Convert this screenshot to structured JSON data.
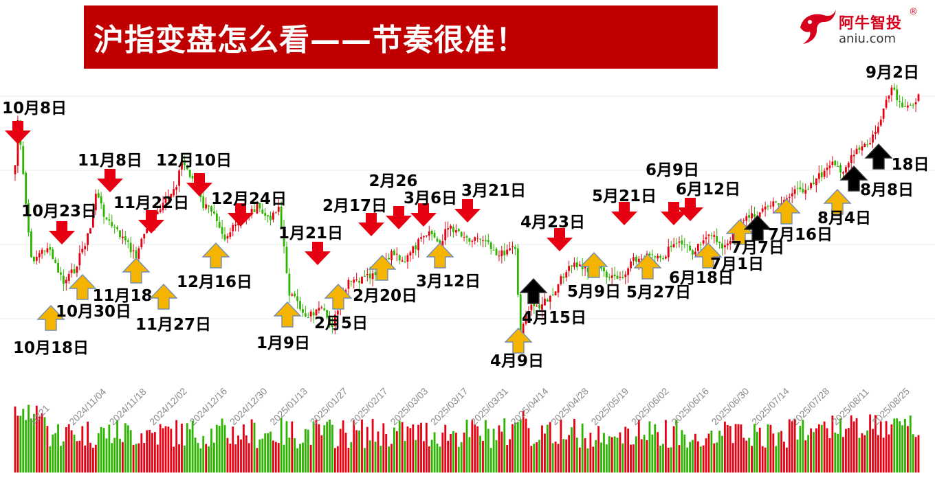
{
  "title": "沪指变盘怎么看——节奏很准！",
  "logo": {
    "name": "阿牛智投",
    "reg": "®",
    "domain": "aniu.com"
  },
  "colors": {
    "banner": "#c00000",
    "up": "#e60012",
    "down": "#2db400",
    "arrow_up_fill": "#f5b400",
    "arrow_up_stroke": "#6f8fb7",
    "arrow_down": "#e60012",
    "arrow_black": "#000000"
  },
  "chart_data": {
    "type": "candlestick",
    "series_name": "",
    "x_ticks": [
      "10/21",
      "2024/11/04",
      "2024/11/18",
      "2024/12/02",
      "2024/12/16",
      "2024/12/30",
      "2025/01/13",
      "2025/01/27",
      "2025/02/17",
      "2025/03/03",
      "2025/03/17",
      "2025/03/31",
      "2025/04/14",
      "2025/04/28",
      "2025/05/19",
      "2025/06/02",
      "2025/06/16",
      "2025/06/30",
      "2025/07/14",
      "2025/07/28",
      "2025/08/11",
      "2025/08/25"
    ],
    "annotations": [
      {
        "label": "10月8日",
        "kind": "top",
        "color": "red"
      },
      {
        "label": "10月18日",
        "kind": "bottom",
        "color": "yellow"
      },
      {
        "label": "10月23日",
        "kind": "top",
        "color": "red"
      },
      {
        "label": "10月30日",
        "kind": "bottom",
        "color": "yellow"
      },
      {
        "label": "11月8日",
        "kind": "top",
        "color": "red"
      },
      {
        "label": "11月18",
        "kind": "bottom",
        "color": "yellow"
      },
      {
        "label": "11月22日",
        "kind": "top",
        "color": "red"
      },
      {
        "label": "11月27日",
        "kind": "bottom",
        "color": "yellow"
      },
      {
        "label": "12月10日",
        "kind": "top",
        "color": "red"
      },
      {
        "label": "12月16日",
        "kind": "bottom",
        "color": "yellow"
      },
      {
        "label": "12月24日",
        "kind": "top",
        "color": "red"
      },
      {
        "label": "1月9日",
        "kind": "bottom",
        "color": "yellow"
      },
      {
        "label": "1月21日",
        "kind": "top",
        "color": "red"
      },
      {
        "label": "2月5日",
        "kind": "bottom",
        "color": "yellow"
      },
      {
        "label": "2月17日",
        "kind": "top",
        "color": "red"
      },
      {
        "label": "2月20日",
        "kind": "bottom",
        "color": "yellow"
      },
      {
        "label": "2月26",
        "kind": "top",
        "color": "red"
      },
      {
        "label": "3月6日",
        "kind": "top",
        "color": "red"
      },
      {
        "label": "3月12日",
        "kind": "bottom",
        "color": "yellow"
      },
      {
        "label": "3月21日",
        "kind": "top",
        "color": "red"
      },
      {
        "label": "4月9日",
        "kind": "bottom",
        "color": "yellow"
      },
      {
        "label": "4月15日",
        "kind": "bottom",
        "color": "black"
      },
      {
        "label": "4月23日",
        "kind": "top",
        "color": "red"
      },
      {
        "label": "5月9日",
        "kind": "bottom",
        "color": "yellow"
      },
      {
        "label": "5月21日",
        "kind": "top",
        "color": "red"
      },
      {
        "label": "5月27日",
        "kind": "bottom",
        "color": "yellow"
      },
      {
        "label": "6月9日",
        "kind": "top",
        "color": "red"
      },
      {
        "label": "6月12日",
        "kind": "top",
        "color": "red"
      },
      {
        "label": "6月18日",
        "kind": "bottom",
        "color": "yellow"
      },
      {
        "label": "7月1日",
        "kind": "bottom",
        "color": "yellow"
      },
      {
        "label": "7月7日",
        "kind": "bottom",
        "color": "black"
      },
      {
        "label": "7月16日",
        "kind": "bottom",
        "color": "yellow"
      },
      {
        "label": "8月4日",
        "kind": "bottom",
        "color": "yellow"
      },
      {
        "label": "8月8日",
        "kind": "bottom",
        "color": "black"
      },
      {
        "label": "18日",
        "kind": "bottom",
        "color": "black"
      },
      {
        "label": "9月2日",
        "kind": "top",
        "color": "none"
      }
    ],
    "price_path_knots": [
      [
        0,
        20
      ],
      [
        1,
        0
      ],
      [
        6,
        62
      ],
      [
        12,
        56
      ],
      [
        18,
        72
      ],
      [
        22,
        66
      ],
      [
        28,
        48
      ],
      [
        30,
        32
      ],
      [
        34,
        44
      ],
      [
        40,
        52
      ],
      [
        45,
        60
      ],
      [
        48,
        50
      ],
      [
        55,
        38
      ],
      [
        60,
        28
      ],
      [
        62,
        18
      ],
      [
        66,
        26
      ],
      [
        70,
        38
      ],
      [
        74,
        40
      ],
      [
        78,
        52
      ],
      [
        84,
        44
      ],
      [
        90,
        38
      ],
      [
        94,
        44
      ],
      [
        98,
        38
      ],
      [
        102,
        76
      ],
      [
        108,
        86
      ],
      [
        114,
        84
      ],
      [
        118,
        90
      ],
      [
        124,
        72
      ],
      [
        130,
        70
      ],
      [
        136,
        68
      ],
      [
        140,
        58
      ],
      [
        145,
        62
      ],
      [
        150,
        54
      ],
      [
        155,
        50
      ],
      [
        158,
        56
      ],
      [
        160,
        48
      ],
      [
        164,
        48
      ],
      [
        168,
        52
      ],
      [
        175,
        52
      ],
      [
        180,
        60
      ],
      [
        184,
        56
      ],
      [
        186,
        56
      ],
      [
        188,
        96
      ],
      [
        190,
        84
      ],
      [
        194,
        82
      ],
      [
        200,
        78
      ],
      [
        204,
        68
      ],
      [
        208,
        64
      ],
      [
        214,
        66
      ],
      [
        218,
        66
      ],
      [
        222,
        70
      ],
      [
        226,
        70
      ],
      [
        230,
        62
      ],
      [
        236,
        60
      ],
      [
        240,
        62
      ],
      [
        244,
        56
      ],
      [
        248,
        54
      ],
      [
        252,
        58
      ],
      [
        256,
        52
      ],
      [
        260,
        52
      ],
      [
        264,
        56
      ],
      [
        266,
        54
      ],
      [
        270,
        44
      ],
      [
        275,
        42
      ],
      [
        280,
        38
      ],
      [
        285,
        36
      ],
      [
        290,
        32
      ],
      [
        294,
        30
      ],
      [
        298,
        26
      ],
      [
        304,
        20
      ],
      [
        308,
        22
      ],
      [
        313,
        14
      ],
      [
        318,
        10
      ],
      [
        322,
        0
      ],
      [
        326,
        -14
      ],
      [
        330,
        -4
      ],
      [
        334,
        -8
      ],
      [
        336,
        -10
      ]
    ],
    "price_level": {
      "min": -14,
      "max": 96
    },
    "volume_level": {
      "min": 0,
      "max": 1
    }
  }
}
